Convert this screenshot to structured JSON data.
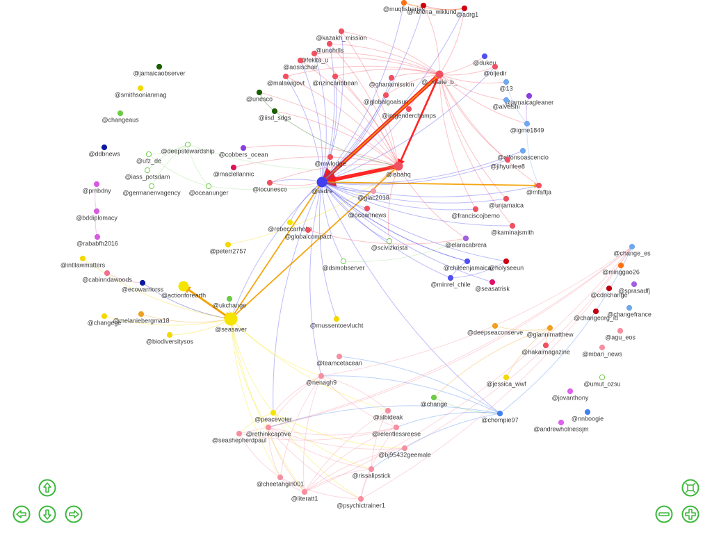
{
  "graph": {
    "nodes": [
      {
        "label": "@jamaicaobserver",
        "color": "#1a5e00"
      },
      {
        "label": "@smithsonianmag",
        "color": "#f5d800"
      },
      {
        "label": "@changeaus",
        "color": "#6ccc44"
      },
      {
        "label": "@ddbnews",
        "color": "#0a1a9e"
      },
      {
        "label": "@ufz_de",
        "color": "#9be08a"
      },
      {
        "label": "@deepstewardship",
        "color": "#9be08a"
      },
      {
        "label": "@iass_potsdam",
        "color": "#9be08a"
      },
      {
        "label": "@germanenvagency",
        "color": "#9be08a"
      },
      {
        "label": "@oceanunger",
        "color": "#9be08a"
      },
      {
        "label": "@cobbers_ocean",
        "color": "#8a3ee0"
      },
      {
        "label": "@maclellannic",
        "color": "#e0105a"
      },
      {
        "label": "@pmbdny",
        "color": "#d65be0"
      },
      {
        "label": "@bddiplomacy",
        "color": "#d65be0"
      },
      {
        "label": "@rababfh2016",
        "color": "#d65be0"
      },
      {
        "label": "@intllawmatters",
        "color": "#f5d800"
      },
      {
        "label": "@cabinndawoods",
        "color": "#f07090"
      },
      {
        "label": "@ecowarriorss",
        "color": "#0a1a9e"
      },
      {
        "label": "@actionforearth",
        "color": "#f5e400"
      },
      {
        "label": "@changege",
        "color": "#f5d800"
      },
      {
        "label": "@melaniebergma18",
        "color": "#f0a020"
      },
      {
        "label": "@biodiversitysos",
        "color": "#f5d800"
      },
      {
        "label": "@seasaver",
        "color": "#f5e400"
      },
      {
        "label": "@ukchange",
        "color": "#6ccc44"
      },
      {
        "label": "@peterr2757",
        "color": "#f5d800"
      },
      {
        "label": "@unesco",
        "color": "#1a5e00"
      },
      {
        "label": "@iisd_sdgs",
        "color": "#1a5e00"
      },
      {
        "label": "@kazakh_mission",
        "color": "#f05060"
      },
      {
        "label": "@unohrlls",
        "color": "#f05060"
      },
      {
        "label": "@fekita_u",
        "color": "#f05060"
      },
      {
        "label": "@aosischair",
        "color": "#f05060"
      },
      {
        "label": "@malawigovt",
        "color": "#f05060"
      },
      {
        "label": "@nzincaribbean",
        "color": "#f05060"
      },
      {
        "label": "@ghanamission",
        "color": "#f05060"
      },
      {
        "label": "@globalgoalsun",
        "color": "#f05060"
      },
      {
        "label": "@intgenderchamps",
        "color": "#f05060"
      },
      {
        "label": "@muqfisheries",
        "color": "#ff7010"
      },
      {
        "label": "@helena_wiklund",
        "color": "#d00010"
      },
      {
        "label": "@adrg1",
        "color": "#d00010"
      },
      {
        "label": "@_marie_b_",
        "color": "#f05060"
      },
      {
        "label": "@dukeu",
        "color": "#5050f0"
      },
      {
        "label": "@oljedir",
        "color": "#f05060"
      },
      {
        "label": "@13",
        "color": "#70a8f0"
      },
      {
        "label": "@jamaicagleaner",
        "color": "#8a3ee0"
      },
      {
        "label": "@alvelshi",
        "color": "#70a8f0"
      },
      {
        "label": "@igme1849",
        "color": "#70a8f0"
      },
      {
        "label": "@alfonsoascencio",
        "color": "#70a8f0"
      },
      {
        "label": "@jihyunlee8",
        "color": "#f05060"
      },
      {
        "label": "@mfaftja",
        "color": "#f05060"
      },
      {
        "label": "@unjamaica",
        "color": "#f05060"
      },
      {
        "label": "@franciscojbemo",
        "color": "#f05060"
      },
      {
        "label": "@kaminajsmith",
        "color": "#f05060"
      },
      {
        "label": "@mwlodge",
        "color": "#f05060"
      },
      {
        "label": "@isbahq",
        "color": "#f05060"
      },
      {
        "label": "@iisdrs",
        "color": "#4040f0"
      },
      {
        "label": "@iocunesco",
        "color": "#f05060"
      },
      {
        "label": "@glac2018",
        "color": "#f59aaa"
      },
      {
        "label": "@oceannews",
        "color": "#f05060"
      },
      {
        "label": "@rebeccarhelm",
        "color": "#f5e400"
      },
      {
        "label": "@globalcompact",
        "color": "#f05060"
      },
      {
        "label": "@scivizkrista",
        "color": "#9be08a"
      },
      {
        "label": "@dsmobserver",
        "color": "#9be08a"
      },
      {
        "label": "@elaracabrera",
        "color": "#a060e0"
      },
      {
        "label": "@chileenjamaica",
        "color": "#5050f0"
      },
      {
        "label": "@minrel_chile",
        "color": "#5050f0"
      },
      {
        "label": "@holyseeun",
        "color": "#d00010"
      },
      {
        "label": "@seasatrisk",
        "color": "#e0106a"
      },
      {
        "label": "@mussentoevlucht",
        "color": "#f5d800"
      },
      {
        "label": "@deepseaconserve",
        "color": "#f0a020"
      },
      {
        "label": "@giannimatthew",
        "color": "#f0a020"
      },
      {
        "label": "@hakaimagazine",
        "color": "#f05060"
      },
      {
        "label": "@jessica_wwf",
        "color": "#f5d800"
      },
      {
        "label": "@change",
        "color": "#6ccc44"
      },
      {
        "label": "@chompie97",
        "color": "#4080f0"
      },
      {
        "label": "@teamcetacean",
        "color": "#f590a0"
      },
      {
        "label": "@nenagh9",
        "color": "#f590a0"
      },
      {
        "label": "@peacevoter",
        "color": "#f5e400"
      },
      {
        "label": "@rethinkcaptive",
        "color": "#f590a0"
      },
      {
        "label": "@seashepherdpaul",
        "color": "#f590a0"
      },
      {
        "label": "@albideak",
        "color": "#f590a0"
      },
      {
        "label": "@relentlessreese",
        "color": "#f590a0"
      },
      {
        "label": "@bj95432geemale",
        "color": "#f590a0"
      },
      {
        "label": "@rissalipstick",
        "color": "#f590a0"
      },
      {
        "label": "@cheetahgirl001",
        "color": "#f590a0"
      },
      {
        "label": "@literatt1",
        "color": "#f590a0"
      },
      {
        "label": "@psychictrainer1",
        "color": "#f590a0"
      },
      {
        "label": "@change_es",
        "color": "#70a8f0"
      },
      {
        "label": "@minggao26",
        "color": "#ff7010"
      },
      {
        "label": "@sprasadfj",
        "color": "#a060e0"
      },
      {
        "label": "@cdnchange",
        "color": "#c00010"
      },
      {
        "label": "@changeorg_id",
        "color": "#c00010"
      },
      {
        "label": "@changefrance",
        "color": "#70a8f0"
      },
      {
        "label": "@agu_eos",
        "color": "#f590a0"
      },
      {
        "label": "@mbari_news",
        "color": "#f590a0"
      },
      {
        "label": "@umut_ozsu",
        "color": "#9be08a"
      },
      {
        "label": "@jovanthony",
        "color": "#e060f0"
      },
      {
        "label": "@nnboogie",
        "color": "#4080f0"
      },
      {
        "label": "@andrewholnessjm",
        "color": "#e060f0"
      }
    ],
    "edges": [
      [
        38,
        53,
        6
      ],
      [
        52,
        53,
        6
      ],
      [
        38,
        52,
        3
      ],
      [
        53,
        38,
        2
      ],
      [
        21,
        17,
        3
      ],
      [
        21,
        52,
        2
      ],
      [
        21,
        53,
        2
      ],
      [
        23,
        52,
        1
      ],
      [
        53,
        47,
        2
      ],
      [
        38,
        26,
        1
      ],
      [
        38,
        27,
        1
      ],
      [
        38,
        28,
        1
      ],
      [
        38,
        29,
        1
      ],
      [
        38,
        30,
        1
      ],
      [
        38,
        31,
        1
      ],
      [
        38,
        32,
        1
      ],
      [
        38,
        33,
        1
      ],
      [
        38,
        34,
        1
      ],
      [
        38,
        36,
        1
      ],
      [
        38,
        37,
        1
      ],
      [
        38,
        39,
        1
      ],
      [
        38,
        40,
        1
      ],
      [
        38,
        41,
        1
      ],
      [
        38,
        43,
        1
      ],
      [
        38,
        44,
        1
      ],
      [
        38,
        46,
        1
      ],
      [
        38,
        47,
        1
      ],
      [
        38,
        48,
        1
      ],
      [
        38,
        49,
        1
      ],
      [
        38,
        50,
        1
      ],
      [
        53,
        26,
        1
      ],
      [
        53,
        27,
        1
      ],
      [
        53,
        28,
        1
      ],
      [
        53,
        29,
        1
      ],
      [
        53,
        30,
        1
      ],
      [
        53,
        31,
        1
      ],
      [
        53,
        32,
        1
      ],
      [
        53,
        33,
        1
      ],
      [
        53,
        34,
        1
      ],
      [
        53,
        35,
        1
      ],
      [
        53,
        36,
        1
      ],
      [
        53,
        37,
        1
      ],
      [
        53,
        40,
        1
      ],
      [
        53,
        45,
        1
      ],
      [
        53,
        46,
        1
      ],
      [
        53,
        47,
        1
      ],
      [
        53,
        48,
        1
      ],
      [
        53,
        49,
        1
      ],
      [
        53,
        50,
        1
      ],
      [
        53,
        54,
        1
      ],
      [
        53,
        55,
        1
      ],
      [
        53,
        56,
        1
      ],
      [
        53,
        57,
        1
      ],
      [
        53,
        59,
        1
      ],
      [
        53,
        60,
        1
      ],
      [
        53,
        62,
        1
      ],
      [
        53,
        63,
        1
      ],
      [
        53,
        64,
        1
      ],
      [
        53,
        65,
        1
      ],
      [
        53,
        66,
        1
      ],
      [
        53,
        72,
        1
      ],
      [
        53,
        74,
        1
      ],
      [
        53,
        75,
        1
      ],
      [
        52,
        26,
        1
      ],
      [
        52,
        27,
        1
      ],
      [
        52,
        28,
        1
      ],
      [
        52,
        29,
        1
      ],
      [
        52,
        30,
        1
      ],
      [
        52,
        31,
        1
      ],
      [
        52,
        24,
        1
      ],
      [
        52,
        25,
        1
      ],
      [
        52,
        54,
        1
      ],
      [
        52,
        55,
        1
      ],
      [
        52,
        59,
        1
      ],
      [
        52,
        10,
        1
      ],
      [
        52,
        9,
        1
      ],
      [
        4,
        5,
        1
      ],
      [
        5,
        6,
        1
      ],
      [
        5,
        7,
        1
      ],
      [
        4,
        8,
        1
      ],
      [
        6,
        7,
        1
      ],
      [
        5,
        8,
        1
      ],
      [
        8,
        52,
        1
      ],
      [
        5,
        52,
        1
      ],
      [
        25,
        52,
        1
      ],
      [
        24,
        25,
        1
      ],
      [
        60,
        61,
        1
      ],
      [
        52,
        61,
        1
      ],
      [
        58,
        61,
        1
      ],
      [
        11,
        12,
        1
      ],
      [
        12,
        13,
        1
      ],
      [
        15,
        16,
        1
      ],
      [
        16,
        21,
        1
      ],
      [
        17,
        21,
        3
      ],
      [
        19,
        21,
        1
      ],
      [
        22,
        21,
        1
      ],
      [
        18,
        21,
        1
      ],
      [
        20,
        21,
        1
      ],
      [
        14,
        21,
        1
      ],
      [
        54,
        53,
        1
      ],
      [
        53,
        62,
        1
      ],
      [
        62,
        63,
        1
      ],
      [
        63,
        64,
        1
      ],
      [
        42,
        44,
        1
      ],
      [
        44,
        47,
        1
      ],
      [
        41,
        44,
        1
      ],
      [
        67,
        68,
        1
      ],
      [
        68,
        69,
        1
      ],
      [
        68,
        70,
        1
      ],
      [
        68,
        71,
        1
      ],
      [
        71,
        72,
        1
      ],
      [
        72,
        73,
        1
      ],
      [
        95,
        97,
        1
      ],
      [
        96,
        97,
        1
      ],
      [
        36,
        37,
        1
      ],
      [
        35,
        36,
        1
      ],
      [
        35,
        37,
        1
      ],
      [
        74,
        75,
        1
      ],
      [
        74,
        76,
        1
      ],
      [
        74,
        79,
        1
      ],
      [
        74,
        82,
        1
      ],
      [
        74,
        83,
        1
      ],
      [
        74,
        85,
        1
      ],
      [
        75,
        77,
        1
      ],
      [
        75,
        80,
        1
      ],
      [
        75,
        84,
        1
      ],
      [
        75,
        81,
        1
      ],
      [
        76,
        79,
        1
      ],
      [
        76,
        80,
        1
      ],
      [
        76,
        81,
        1
      ],
      [
        76,
        82,
        1
      ],
      [
        76,
        83,
        1
      ],
      [
        76,
        84,
        1
      ],
      [
        76,
        85,
        1
      ],
      [
        77,
        79,
        1
      ],
      [
        77,
        82,
        1
      ],
      [
        77,
        85,
        1
      ],
      [
        78,
        79,
        1
      ],
      [
        78,
        81,
        1
      ],
      [
        78,
        83,
        1
      ],
      [
        78,
        74,
        1
      ],
      [
        79,
        83,
        1
      ],
      [
        79,
        84,
        1
      ],
      [
        80,
        83,
        1
      ],
      [
        80,
        85,
        1
      ],
      [
        81,
        84,
        1
      ],
      [
        81,
        83,
        1
      ],
      [
        82,
        83,
        1
      ],
      [
        82,
        84,
        1
      ],
      [
        84,
        85,
        1
      ],
      [
        83,
        85,
        1
      ],
      [
        72,
        74,
        1
      ],
      [
        72,
        79,
        1
      ],
      [
        72,
        76,
        1
      ],
      [
        72,
        85,
        1
      ],
      [
        72,
        81,
        1
      ],
      [
        21,
        74,
        1
      ],
      [
        21,
        75,
        1
      ],
      [
        21,
        78,
        1
      ],
      [
        21,
        76,
        1
      ],
      [
        21,
        82,
        1
      ],
      [
        21,
        83,
        1
      ],
      [
        53,
        21,
        1
      ]
    ]
  },
  "navigation": {
    "up": "arrow-up",
    "down": "arrow-down",
    "left": "arrow-left",
    "right": "arrow-right",
    "zoom_in": "plus",
    "zoom_out": "minus",
    "fit": "fit-to-screen"
  },
  "colors": {
    "nav_button": "#3cb83c"
  }
}
